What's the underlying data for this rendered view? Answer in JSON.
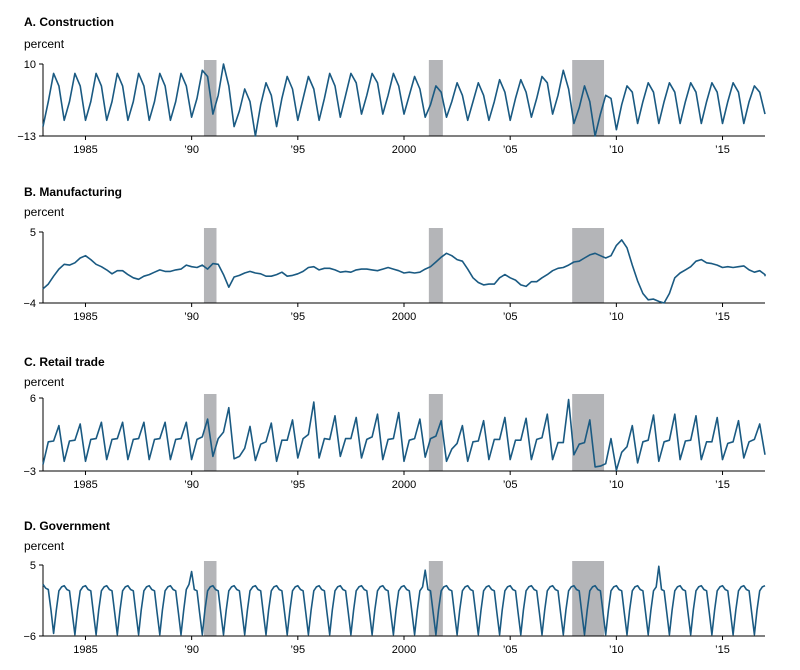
{
  "colors": {
    "line": "#1a5a82",
    "recession": "#b4b5b8",
    "axis": "#000000"
  },
  "chart_data": [
    {
      "type": "line",
      "title": "A. Construction",
      "ylabel": "percent",
      "ylim": [
        -13,
        10
      ],
      "yticks": [
        "10",
        "−13"
      ],
      "xlim": [
        1983.0,
        2017.0
      ],
      "xticks": [
        1985,
        1990,
        1995,
        2000,
        2005,
        2010,
        2015
      ],
      "xtick_labels": [
        "1985",
        "’90",
        "’95",
        "2000",
        "’05",
        "’10",
        "’15"
      ],
      "recessions": [
        [
          1990.58,
          1991.17
        ],
        [
          2001.17,
          2001.83
        ],
        [
          2007.92,
          2009.42
        ]
      ],
      "series": [
        {
          "x_start": 1983.0,
          "x_step": 0.25,
          "values": [
            -10,
            -2,
            7,
            3,
            -8,
            -2,
            7,
            3,
            -8,
            -2,
            7,
            3,
            -8,
            -2,
            7,
            3,
            -8,
            -2,
            7,
            3,
            -8,
            -2,
            7,
            3,
            -8,
            -2,
            7,
            3,
            -7,
            -1,
            8,
            6,
            -6,
            0,
            10,
            3,
            -10,
            -5,
            2,
            -2,
            -13,
            -3,
            4,
            0,
            -10,
            -1,
            6,
            2,
            -8,
            -1,
            6,
            2,
            -8,
            -1,
            7,
            3,
            -7,
            0,
            7,
            4,
            -6,
            0,
            7,
            4,
            -6,
            0,
            7,
            3,
            -6,
            0,
            6,
            2,
            -7,
            -3,
            3,
            1,
            -7,
            -2,
            4,
            0,
            -8,
            -2,
            4,
            0,
            -8,
            -2,
            5,
            1,
            -8,
            -1,
            5,
            1,
            -7,
            -1,
            6,
            4,
            -6,
            0,
            8,
            2,
            -9,
            -4,
            3,
            -2,
            -13,
            -6,
            0,
            -1,
            -11,
            -3,
            3,
            1,
            -9,
            -2,
            4,
            1,
            -9,
            -2,
            4,
            1,
            -9,
            -2,
            4,
            1,
            -9,
            -2,
            4,
            1,
            -9,
            -2,
            4,
            1,
            -9,
            -2,
            3,
            1,
            -6
          ]
        }
      ]
    },
    {
      "type": "line",
      "title": "B. Manufacturing",
      "ylabel": "percent",
      "ylim": [
        -4,
        5
      ],
      "yticks": [
        "5",
        "−4"
      ],
      "xlim": [
        1983.0,
        2017.0
      ],
      "xticks": [
        1985,
        1990,
        1995,
        2000,
        2005,
        2010,
        2015
      ],
      "xtick_labels": [
        "1985",
        "’90",
        "’95",
        "2000",
        "’05",
        "’10",
        "’15"
      ],
      "recessions": [
        [
          1990.58,
          1991.17
        ],
        [
          2001.17,
          2001.83
        ],
        [
          2007.92,
          2009.42
        ]
      ],
      "series": [
        {
          "x_start": 1983.0,
          "x_step": 0.25,
          "values": [
            -2.2,
            -1.6,
            -0.6,
            0.3,
            0.9,
            0.8,
            1.1,
            1.7,
            2.0,
            1.5,
            0.9,
            0.6,
            0.2,
            -0.3,
            0.1,
            0.1,
            -0.4,
            -0.8,
            -1.0,
            -0.6,
            -0.4,
            -0.1,
            0.2,
            0.0,
            0.0,
            0.2,
            0.3,
            0.8,
            0.6,
            0.5,
            0.8,
            0.3,
            1.0,
            0.9,
            -0.4,
            -2.0,
            -0.7,
            -0.5,
            -0.2,
            0.0,
            -0.2,
            -0.3,
            -0.6,
            -0.6,
            -0.4,
            -0.1,
            -0.6,
            -0.5,
            -0.3,
            0.0,
            0.5,
            0.6,
            0.2,
            0.4,
            0.4,
            0.2,
            -0.1,
            0.0,
            -0.1,
            0.2,
            0.3,
            0.3,
            0.2,
            0.1,
            0.3,
            0.5,
            0.3,
            0.1,
            -0.2,
            -0.1,
            -0.2,
            -0.1,
            0.3,
            0.6,
            1.2,
            1.8,
            2.3,
            2.0,
            1.5,
            1.3,
            0.3,
            -0.8,
            -1.4,
            -1.7,
            -1.6,
            -1.6,
            -0.8,
            -0.4,
            -0.8,
            -1.1,
            -1.7,
            -1.9,
            -1.3,
            -1.3,
            -0.8,
            -0.4,
            0.1,
            0.4,
            0.5,
            0.8,
            1.2,
            1.3,
            1.7,
            2.1,
            2.3,
            2.0,
            1.7,
            2.0,
            3.3,
            4.0,
            3.0,
            0.8,
            -1.2,
            -2.8,
            -3.6,
            -3.5,
            -3.8,
            -4.0,
            -2.8,
            -0.8,
            -0.2,
            0.2,
            0.6,
            1.3,
            1.5,
            1.1,
            1.0,
            0.8,
            0.5,
            0.6,
            0.5,
            0.6,
            0.7,
            0.2,
            -0.1,
            0.1,
            -0.4,
            -0.6
          ]
        }
      ]
    },
    {
      "type": "line",
      "title": "C. Retail trade",
      "ylabel": "percent",
      "ylim": [
        -3,
        6
      ],
      "yticks": [
        "6",
        "−3"
      ],
      "xlim": [
        1983.0,
        2017.0
      ],
      "xticks": [
        1985,
        1990,
        1995,
        2000,
        2005,
        2010,
        2015
      ],
      "xtick_labels": [
        "1985",
        "’90",
        "’95",
        "2000",
        "’05",
        "’10",
        "’15"
      ],
      "recessions": [
        [
          1990.58,
          1991.17
        ],
        [
          2001.17,
          2001.83
        ],
        [
          2007.92,
          2009.42
        ]
      ],
      "series": [
        {
          "x_start": 1983.0,
          "x_step": 0.25,
          "values": [
            -2.2,
            0.6,
            0.7,
            2.6,
            -1.8,
            0.7,
            0.8,
            2.8,
            -1.8,
            0.9,
            1.0,
            3.0,
            -1.6,
            0.9,
            1.0,
            3.0,
            -1.6,
            0.9,
            1.0,
            3.0,
            -1.6,
            0.9,
            1.0,
            3.0,
            -1.6,
            0.9,
            1.0,
            3.0,
            -1.6,
            0.9,
            1.2,
            3.4,
            -1.2,
            1.0,
            1.8,
            4.8,
            -1.5,
            -1.2,
            -0.2,
            2.5,
            -1.7,
            0.3,
            0.6,
            2.9,
            -1.8,
            0.8,
            0.8,
            3.3,
            -1.4,
            1.0,
            1.5,
            5.5,
            -1.4,
            1.0,
            0.9,
            3.8,
            -1.2,
            1.0,
            1.0,
            3.6,
            -1.4,
            0.9,
            1.2,
            4.0,
            -1.6,
            0.9,
            1.0,
            4.2,
            -1.8,
            0.8,
            1.0,
            3.4,
            -1.3,
            1.0,
            1.3,
            3.2,
            -1.8,
            -0.3,
            0.4,
            2.6,
            -1.8,
            0.6,
            0.7,
            3.2,
            -1.6,
            0.9,
            0.9,
            3.6,
            -1.6,
            0.8,
            0.8,
            3.5,
            -1.6,
            0.9,
            1.1,
            4.0,
            -1.6,
            0.5,
            0.5,
            5.8,
            -1.0,
            0.3,
            0.5,
            3.3,
            -2.5,
            -2.4,
            -2.1,
            1.0,
            -2.9,
            -0.7,
            0.0,
            2.6,
            -2.0,
            0.6,
            0.8,
            3.9,
            -1.8,
            0.6,
            0.8,
            4.0,
            -1.6,
            0.7,
            0.8,
            3.8,
            -1.6,
            0.6,
            0.6,
            3.6,
            -1.6,
            0.4,
            0.6,
            3.2,
            -1.4,
            0.6,
            0.9,
            2.8,
            -1.0
          ]
        }
      ]
    },
    {
      "type": "line",
      "title": "D. Government",
      "ylabel": "percent",
      "ylim": [
        -6,
        5
      ],
      "yticks": [
        "5",
        "−6"
      ],
      "xlim": [
        1983.0,
        2017.0
      ],
      "xticks": [
        1985,
        1990,
        1995,
        2000,
        2005,
        2010,
        2015
      ],
      "xtick_labels": [
        "1985",
        "’90",
        "’95",
        "2000",
        "’05",
        "’10",
        "’15"
      ],
      "recessions": [
        [
          1990.58,
          1991.17
        ],
        [
          2001.17,
          2001.83
        ],
        [
          2007.92,
          2009.42
        ]
      ],
      "series": [
        {
          "x_start": 1983.0,
          "x_step": 0.125,
          "values": [
            2.0,
            1.4,
            1.2,
            -2.0,
            -5.6,
            -2.0,
            1.0,
            1.6,
            1.8,
            1.2,
            1.0,
            -2.4,
            -5.8,
            -2.0,
            1.0,
            1.6,
            1.8,
            1.2,
            1.0,
            -2.4,
            -5.8,
            -2.0,
            1.0,
            1.6,
            1.8,
            1.2,
            1.0,
            -2.4,
            -5.8,
            -2.0,
            1.0,
            1.6,
            1.8,
            1.2,
            1.0,
            -2.4,
            -5.8,
            -2.0,
            1.0,
            1.6,
            1.8,
            1.2,
            1.0,
            -2.4,
            -5.8,
            -2.0,
            1.0,
            1.6,
            1.8,
            1.2,
            1.0,
            -2.4,
            -5.8,
            -2.0,
            1.2,
            2.0,
            4.0,
            1.2,
            1.0,
            -2.4,
            -5.8,
            -2.0,
            1.0,
            1.6,
            1.8,
            1.2,
            1.0,
            -2.4,
            -5.8,
            -2.0,
            1.0,
            1.6,
            1.8,
            1.2,
            1.0,
            -2.4,
            -5.8,
            -2.0,
            1.0,
            1.6,
            1.8,
            1.2,
            1.0,
            -2.4,
            -5.8,
            -2.0,
            1.0,
            1.6,
            1.8,
            1.2,
            1.0,
            -2.4,
            -5.8,
            -2.0,
            1.0,
            1.6,
            1.8,
            1.2,
            1.0,
            -2.4,
            -5.8,
            -2.0,
            1.0,
            1.6,
            1.8,
            1.2,
            1.0,
            -2.4,
            -5.8,
            -2.0,
            1.0,
            1.6,
            1.8,
            1.2,
            1.0,
            -2.4,
            -5.8,
            -2.0,
            1.0,
            1.6,
            1.8,
            1.2,
            1.0,
            -2.4,
            -5.8,
            -2.0,
            1.0,
            1.6,
            1.8,
            1.2,
            1.0,
            -2.4,
            -5.8,
            -2.0,
            1.0,
            1.6,
            1.8,
            1.2,
            1.0,
            -2.4,
            -5.8,
            -2.0,
            1.0,
            1.6,
            4.2,
            1.2,
            1.0,
            -2.4,
            -5.8,
            -2.0,
            1.0,
            1.6,
            1.8,
            1.2,
            1.0,
            -2.4,
            -5.8,
            -2.0,
            1.0,
            1.6,
            1.8,
            1.2,
            1.0,
            -2.4,
            -5.8,
            -2.0,
            1.0,
            1.6,
            1.8,
            1.2,
            1.0,
            -2.4,
            -5.8,
            -2.0,
            1.0,
            1.6,
            1.8,
            1.2,
            1.0,
            -2.4,
            -5.8,
            -2.0,
            1.0,
            1.6,
            1.8,
            1.2,
            1.0,
            -2.4,
            -5.8,
            -2.0,
            1.0,
            1.6,
            1.8,
            1.2,
            1.0,
            -2.4,
            -5.8,
            -2.0,
            1.0,
            1.6,
            1.8,
            1.2,
            1.0,
            -2.4,
            -5.8,
            -2.0,
            1.0,
            1.6,
            1.8,
            1.2,
            1.0,
            -2.4,
            -5.8,
            -2.0,
            1.0,
            1.6,
            1.8,
            1.2,
            1.0,
            -2.4,
            -5.8,
            -2.0,
            1.0,
            1.6,
            1.8,
            1.2,
            1.0,
            -2.4,
            -5.8,
            -2.0,
            1.0,
            1.6,
            4.8,
            1.2,
            1.0,
            -2.4,
            -5.8,
            -2.0,
            1.0,
            1.6,
            1.8,
            1.2,
            1.0,
            -2.4,
            -5.8,
            -2.0,
            1.0,
            1.6,
            1.8,
            1.2,
            1.0,
            -2.4,
            -5.8,
            -2.0,
            1.0,
            1.6,
            1.8,
            1.2,
            1.0,
            -2.4,
            -5.8,
            -2.0,
            1.0,
            1.6,
            1.8,
            1.2,
            1.0,
            -2.4,
            -5.8,
            -2.0,
            1.0,
            1.6,
            1.8
          ]
        }
      ]
    }
  ]
}
